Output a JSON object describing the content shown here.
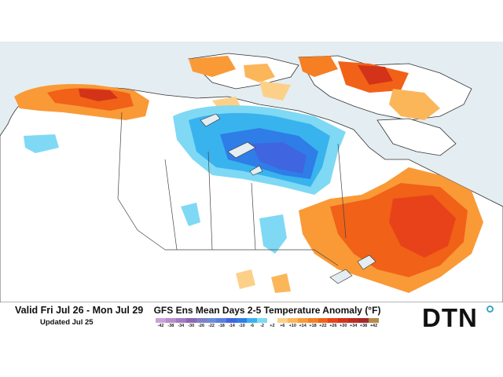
{
  "header": {
    "valid_text": "Valid Fri Jul 26 - Mon Jul 29",
    "updated_text": "Updated Jul 25",
    "title": "GFS Ens Mean Days 2-5 Temperature Anomaly (°F)"
  },
  "legend": {
    "ticks": [
      "-42",
      "-38",
      "-34",
      "-30",
      "-26",
      "-22",
      "-18",
      "-14",
      "-10",
      "-6",
      "-2",
      "+2",
      "+6",
      "+10",
      "+14",
      "+18",
      "+22",
      "+26",
      "+30",
      "+34",
      "+38",
      "+42"
    ],
    "colors": [
      "#c9a2d8",
      "#b98ccc",
      "#a679bf",
      "#8d67b3",
      "#7f80c7",
      "#6d8bd6",
      "#5a7fe0",
      "#3f66e0",
      "#2f7de6",
      "#38b3ee",
      "#7fd9f4",
      "#ffffff",
      "#fdd089",
      "#fbb65a",
      "#f99a37",
      "#f57f22",
      "#f16118",
      "#e8421a",
      "#d33318",
      "#bf2a23",
      "#a22a2a",
      "#b58a4e"
    ]
  },
  "logo": {
    "text": "DTN"
  },
  "colors": {
    "land": "#ffffff",
    "water": "#e4edf1",
    "warm": "#f5761d",
    "hot": "#e8421a",
    "cool": "#38b3ee",
    "cold": "#2f7de6"
  }
}
